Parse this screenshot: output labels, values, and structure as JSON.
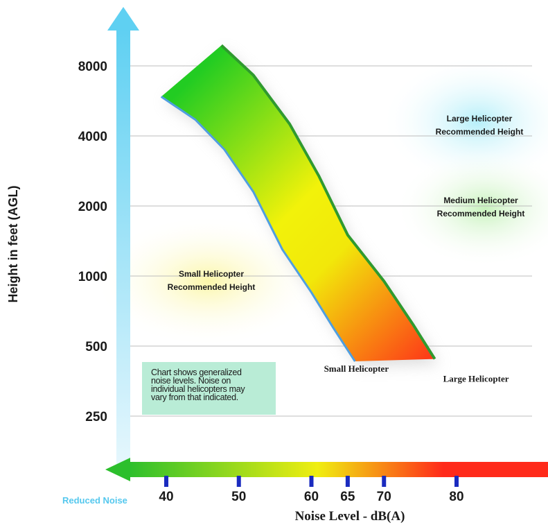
{
  "chart_data": {
    "type": "area",
    "ylabel": "Height in feet (AGL)",
    "xlabel": "Noise Level - dB(A)",
    "x_axis_note": "Reduced Noise",
    "y_scale": "log",
    "ylim": [
      170,
      15000
    ],
    "xlim": [
      40,
      86
    ],
    "y_ticks": [
      250,
      500,
      1000,
      2000,
      4000,
      8000
    ],
    "x_ticks": [
      40,
      50,
      60,
      65,
      70,
      80
    ],
    "grid": true,
    "series": [
      {
        "name": "Small Helicopter",
        "color": "#4f9fe0",
        "points": [
          [
            39.3,
            5900
          ],
          [
            44,
            4700
          ],
          [
            48,
            3500
          ],
          [
            52,
            2300
          ],
          [
            56,
            1300
          ],
          [
            60,
            850
          ],
          [
            63,
            600
          ],
          [
            66,
            430
          ]
        ]
      },
      {
        "name": "Large Helicopter",
        "color": "#2f9a2f",
        "points": [
          [
            47.6,
            9800
          ],
          [
            52,
            7300
          ],
          [
            57,
            4500
          ],
          [
            61,
            2700
          ],
          [
            65,
            1500
          ],
          [
            70,
            950
          ],
          [
            74,
            620
          ],
          [
            77,
            440
          ]
        ]
      }
    ],
    "annotations": [
      {
        "text": [
          "Large Helicopter",
          "Recommended Height"
        ]
      },
      {
        "text": [
          "Medium Helicopter",
          "Recommended Height"
        ]
      },
      {
        "text": [
          "Small Helicopter",
          "Recommended Height"
        ]
      }
    ],
    "note": [
      "Chart shows generalized",
      "noise levels. Noise on",
      "individual helicopters may",
      "vary from that indicated."
    ]
  },
  "colors": {
    "axis_blue": "#5fd0f2",
    "band_green": "#22cc22",
    "band_yellow": "#f2f20a",
    "band_red": "#ff1a1a",
    "grid": "#bcbcbc",
    "tick_mark": "#1a2bbf",
    "note_bg": "#b9ecd6"
  }
}
